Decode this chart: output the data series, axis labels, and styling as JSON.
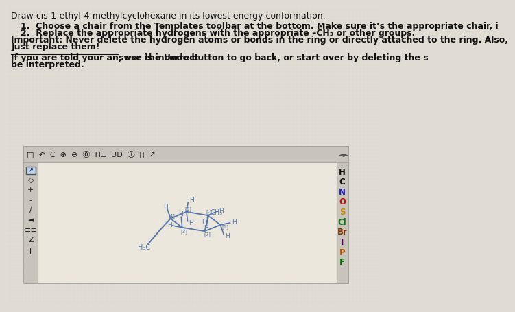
{
  "bg_color": "#d4d0c8",
  "page_bg": "#e0dcd4",
  "box_bg": "#ebe7dc",
  "title_text": "Draw cis-1-ethyl-4-methylcyclohexane in its lowest energy conformation.",
  "instructions": [
    "1.  Choose a chair from the Templates toolbar at the bottom. Make sure it’s the appropriate chair, i",
    "2.  Replace the appropriate hydrogens with the appropriate –CH₃ or other groups.",
    "Important: Never delete the hydrogen atoms or bonds in the ring or directly attached to the ring. Also,",
    "Just replace them!"
  ],
  "underline_text": "If you are told your answer is incorrect",
  "underline_suffix": ", use the Undo button to go back, or start over by deleting the s",
  "line2": "be interpreted.",
  "sidebar_right": [
    "H",
    "C",
    "N",
    "O",
    "S",
    "Cl",
    "Br",
    "I",
    "P",
    "F"
  ],
  "mol_color": "#5577aa",
  "text_color": "#111111",
  "box_border": "#999999",
  "toolbar_bg": "#c8c4bc",
  "label_colors": {
    "H": "#111111",
    "C": "#111111",
    "N": "#2222bb",
    "O": "#bb1111",
    "S": "#cc8800",
    "Cl": "#117711",
    "Br": "#773300",
    "I": "#550066",
    "P": "#bb5500",
    "F": "#007700"
  }
}
